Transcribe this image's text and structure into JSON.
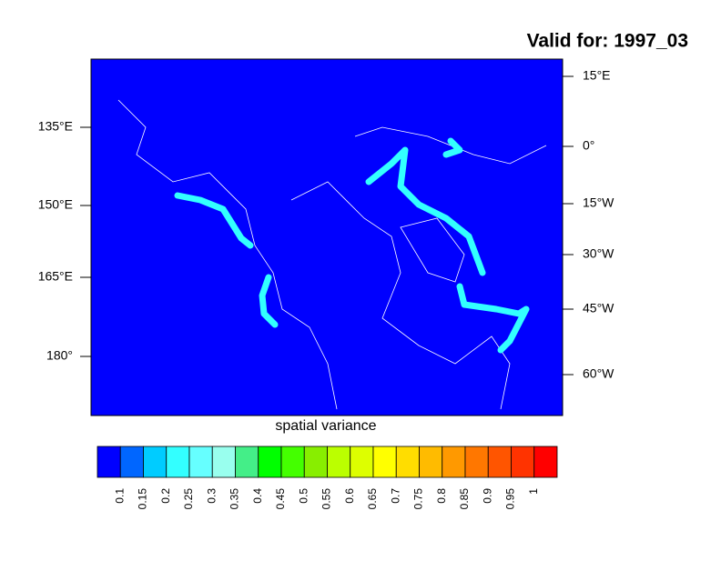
{
  "title": "Valid for: 1997_03",
  "map": {
    "background": "#0000ff",
    "highlight": "#33ffff",
    "left_labels": [
      "135°E",
      "150°E",
      "165°E",
      "180°"
    ],
    "right_labels": [
      "15°E",
      "0°",
      "15°W",
      "30°W",
      "45°W",
      "60°W"
    ],
    "xlabel": "spatial variance"
  },
  "colorbar": {
    "colors": [
      "#0000ff",
      "#0066ff",
      "#00ccff",
      "#33ffff",
      "#66ffff",
      "#99ffee",
      "#44ee88",
      "#00ff00",
      "#44ff00",
      "#88ee00",
      "#bbff00",
      "#ddff00",
      "#ffff00",
      "#ffdd00",
      "#ffbb00",
      "#ff9900",
      "#ff7700",
      "#ff5500",
      "#ff3300",
      "#ff0000"
    ],
    "labels": [
      "0.1",
      "0.15",
      "0.2",
      "0.25",
      "0.3",
      "0.35",
      "0.4",
      "0.45",
      "0.5",
      "0.55",
      "0.6",
      "0.65",
      "0.7",
      "0.75",
      "0.8",
      "0.85",
      "0.9",
      "0.95",
      "1"
    ]
  }
}
